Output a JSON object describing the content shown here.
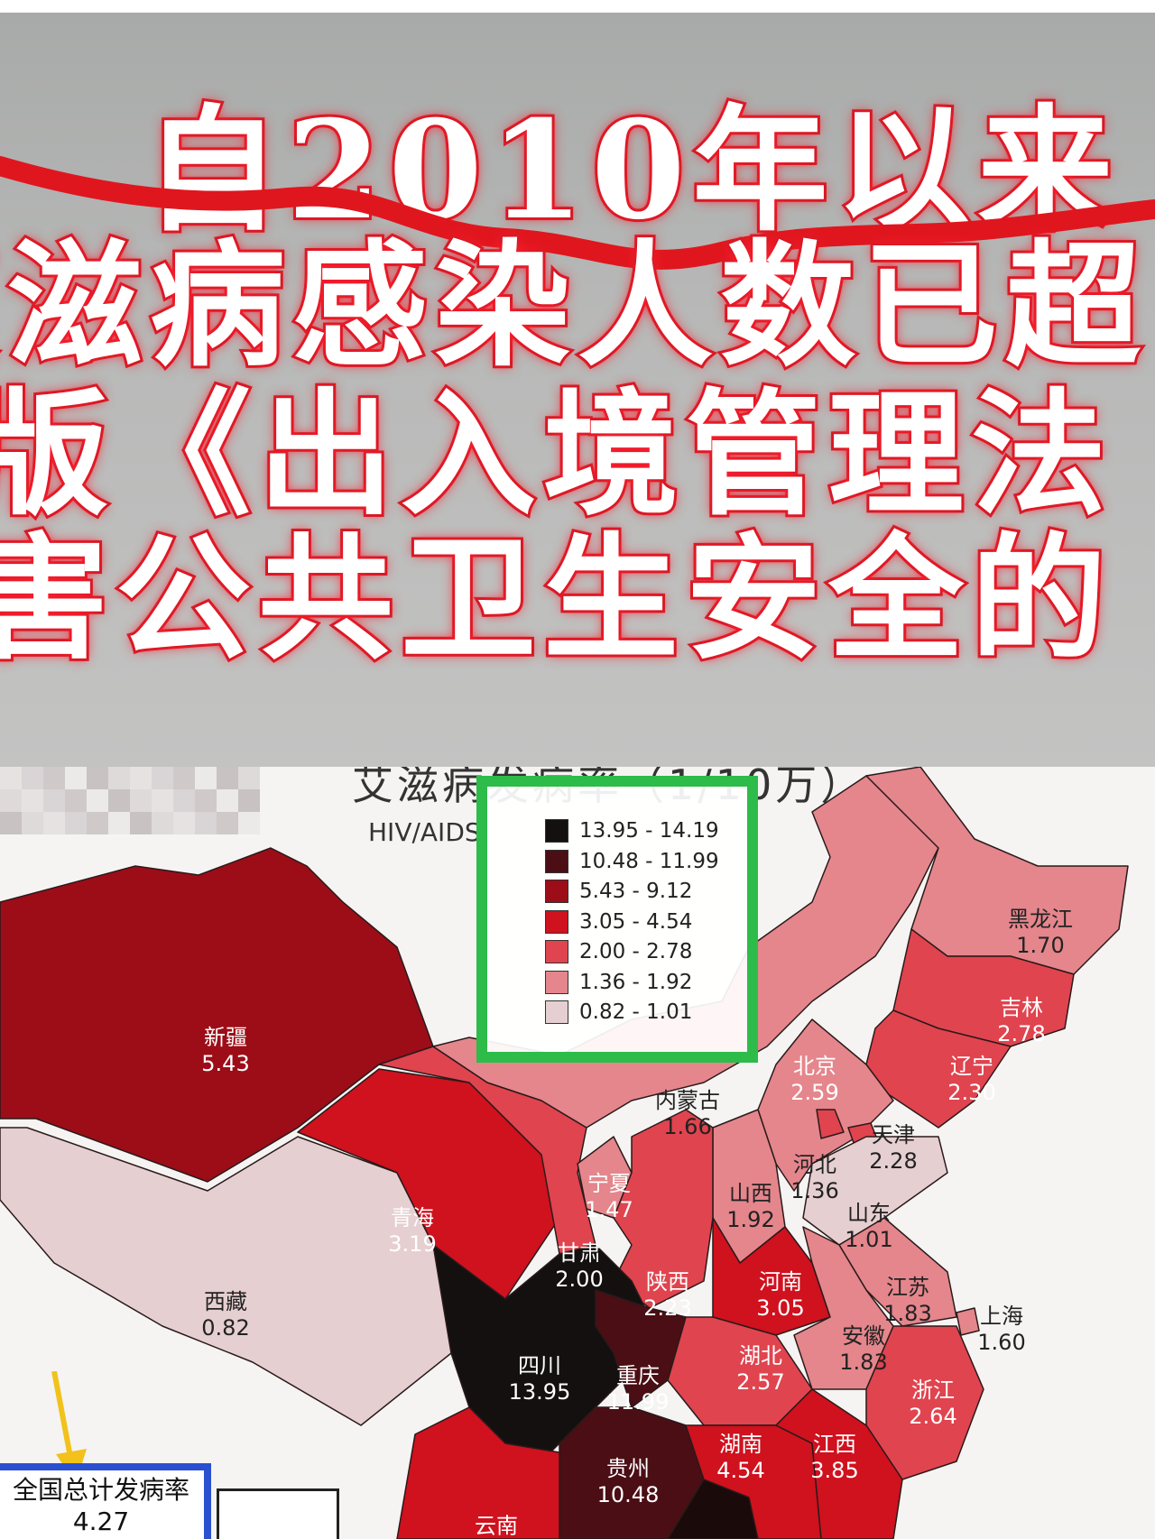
{
  "banner": {
    "lines": [
      "自2010年以来",
      "艾滋病感染人数已超",
      "版《出入境管理法",
      "害公共卫生安全的"
    ]
  },
  "map": {
    "title": "艾滋病发病率（1/10万）",
    "subtitle": "HIV/AIDS",
    "legend": [
      {
        "range": "13.95 - 14.19",
        "color": "#141010"
      },
      {
        "range": "10.48 - 11.99",
        "color": "#4a0e14"
      },
      {
        "range": "5.43 - 9.12",
        "color": "#9c0d18"
      },
      {
        "range": "3.05 - 4.54",
        "color": "#d0111e"
      },
      {
        "range": "2.00 - 2.78",
        "color": "#e0444f"
      },
      {
        "range": "1.36 - 1.92",
        "color": "#e4868c"
      },
      {
        "range": "0.82 - 1.01",
        "color": "#e6cfd0"
      }
    ],
    "legend_box_color": "#2dbb4a",
    "provinces": [
      {
        "name": "新疆",
        "value": "5.43"
      },
      {
        "name": "西藏",
        "value": "0.82"
      },
      {
        "name": "青海",
        "value": "3.19"
      },
      {
        "name": "内蒙古",
        "value": "1.66"
      },
      {
        "name": "黑龙江",
        "value": "1.70"
      },
      {
        "name": "吉林",
        "value": "2.78"
      },
      {
        "name": "辽宁",
        "value": "2.30"
      },
      {
        "name": "北京",
        "value": "2.59"
      },
      {
        "name": "天津",
        "value": "2.28"
      },
      {
        "name": "河北",
        "value": "1.36"
      },
      {
        "name": "山西",
        "value": "1.92"
      },
      {
        "name": "山东",
        "value": "1.01"
      },
      {
        "name": "宁夏",
        "value": "1.47"
      },
      {
        "name": "甘肃",
        "value": "2.00"
      },
      {
        "name": "陕西",
        "value": "2.23"
      },
      {
        "name": "河南",
        "value": "3.05"
      },
      {
        "name": "江苏",
        "value": "1.83"
      },
      {
        "name": "上海",
        "value": "1.60"
      },
      {
        "name": "安徽",
        "value": "1.83"
      },
      {
        "name": "湖北",
        "value": "2.57"
      },
      {
        "name": "浙江",
        "value": "2.64"
      },
      {
        "name": "四川",
        "value": "13.95"
      },
      {
        "name": "重庆",
        "value": "11.99"
      },
      {
        "name": "湖南",
        "value": "4.54"
      },
      {
        "name": "江西",
        "value": "3.85"
      },
      {
        "name": "贵州",
        "value": "10.48"
      },
      {
        "name": "云南",
        "value": ""
      }
    ],
    "total": {
      "label": "全国总计发病率",
      "value": "4.27",
      "box_color": "#2a4fd0"
    }
  }
}
